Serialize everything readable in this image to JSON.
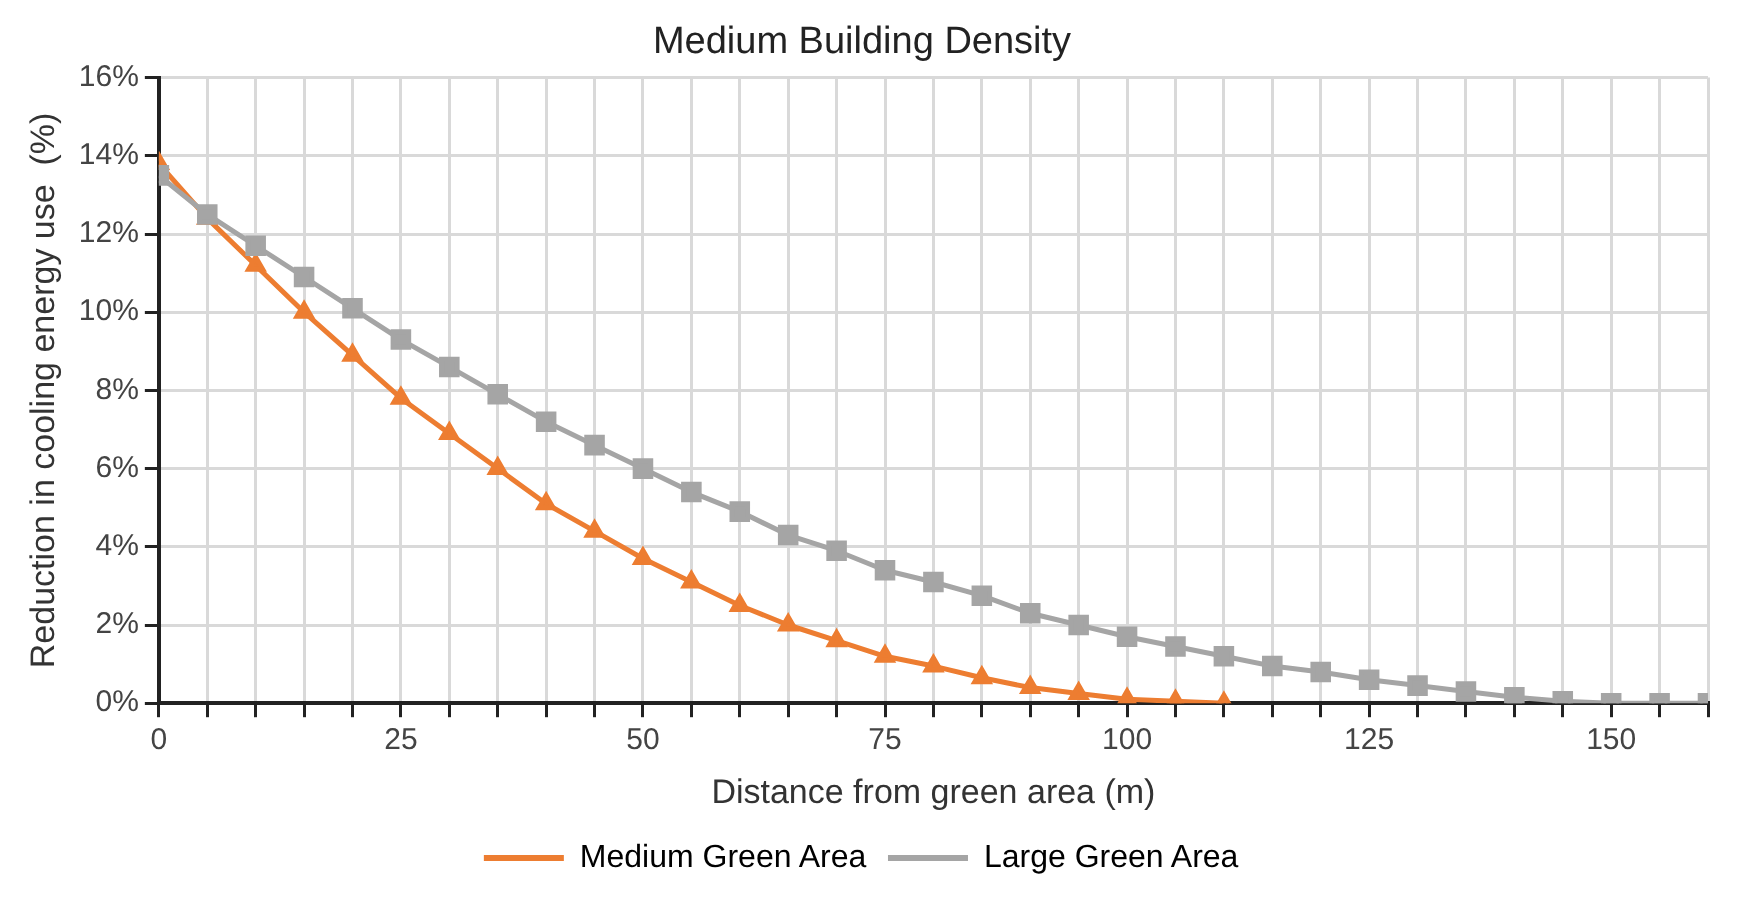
{
  "chart_data": {
    "type": "line",
    "title": "Medium Building Density",
    "xlabel": "Distance from green area (m)",
    "ylabel": "Reduction in cooling energy use  (%)",
    "xlim": [
      0,
      160
    ],
    "xticks": [
      0,
      {
        "value": 5,
        "label": null
      },
      {
        "value": 10,
        "label": null
      },
      {
        "value": 15,
        "label": null
      },
      {
        "value": 20,
        "label": null
      },
      25,
      {
        "value": 30,
        "label": null
      },
      {
        "value": 35,
        "label": null
      },
      {
        "value": 40,
        "label": null
      },
      {
        "value": 45,
        "label": null
      },
      50,
      {
        "value": 55,
        "label": null
      },
      {
        "value": 60,
        "label": null
      },
      {
        "value": 65,
        "label": null
      },
      {
        "value": 70,
        "label": null
      },
      75,
      {
        "value": 80,
        "label": null
      },
      {
        "value": 85,
        "label": null
      },
      {
        "value": 90,
        "label": null
      },
      {
        "value": 95,
        "label": null
      },
      100,
      {
        "value": 105,
        "label": null
      },
      {
        "value": 110,
        "label": null
      },
      {
        "value": 115,
        "label": null
      },
      {
        "value": 120,
        "label": null
      },
      125,
      {
        "value": 130,
        "label": null
      },
      {
        "value": 135,
        "label": null
      },
      {
        "value": 140,
        "label": null
      },
      {
        "value": 145,
        "label": null
      },
      150,
      {
        "value": 155,
        "label": null
      },
      {
        "value": 160,
        "label": null
      }
    ],
    "ylim": [
      0,
      16
    ],
    "yticks": [
      {
        "value": 0,
        "label": "0%"
      },
      {
        "value": 2,
        "label": "2%"
      },
      {
        "value": 4,
        "label": "4%"
      },
      {
        "value": 6,
        "label": "6%"
      },
      {
        "value": 8,
        "label": "8%"
      },
      {
        "value": 10,
        "label": "10%"
      },
      {
        "value": 12,
        "label": "12%"
      },
      {
        "value": 14,
        "label": "14%"
      },
      {
        "value": 16,
        "label": "16%"
      }
    ],
    "grid": true,
    "legend": "bottom",
    "line_style": "solid",
    "series": [
      {
        "name": "Medium Green Area",
        "color": "#ed7d31",
        "marker": "triangle",
        "x": [
          0,
          5,
          10,
          15,
          20,
          25,
          30,
          35,
          40,
          45,
          50,
          55,
          60,
          65,
          70,
          75,
          80,
          85,
          90,
          95,
          100,
          105,
          110
        ],
        "values": [
          13.8,
          12.4,
          11.2,
          10.0,
          8.9,
          7.8,
          6.9,
          6.0,
          5.1,
          4.4,
          3.7,
          3.1,
          2.5,
          2.0,
          1.6,
          1.2,
          0.95,
          0.65,
          0.4,
          0.25,
          0.1,
          0.05,
          0
        ]
      },
      {
        "name": "Large Green Area",
        "color": "#a5a5a5",
        "marker": "square",
        "x": [
          0,
          5,
          10,
          15,
          20,
          25,
          30,
          35,
          40,
          45,
          50,
          55,
          60,
          65,
          70,
          75,
          80,
          85,
          90,
          95,
          100,
          105,
          110,
          115,
          120,
          125,
          130,
          135,
          140,
          145,
          150,
          155,
          160
        ],
        "values": [
          13.5,
          12.5,
          11.7,
          10.9,
          10.1,
          9.3,
          8.6,
          7.9,
          7.2,
          6.6,
          6.0,
          5.4,
          4.9,
          4.3,
          3.9,
          3.4,
          3.1,
          2.75,
          2.3,
          2.0,
          1.7,
          1.45,
          1.2,
          0.95,
          0.8,
          0.6,
          0.45,
          0.3,
          0.15,
          0.05,
          0,
          0,
          0
        ]
      }
    ]
  }
}
